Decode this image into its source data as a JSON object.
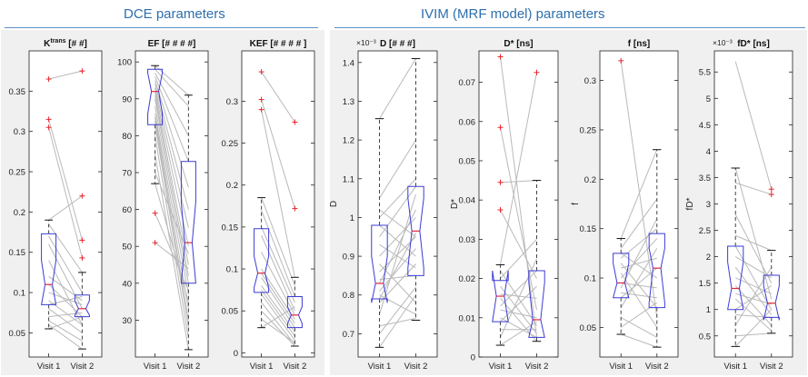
{
  "header": {
    "dce_title": "DCE parameters",
    "ivim_title": "IVIM (MRF model) parameters"
  },
  "colors": {
    "section_title": "#2e6fad",
    "box": "#3b3bd6",
    "median": "#e0283c",
    "outlier": "#e8262c",
    "whisker": "#444444",
    "pair_line": "#b9b9b9"
  },
  "chart_data": [
    {
      "type": "boxplot",
      "title": "K",
      "title_sup": "trans",
      "title_suffix": " [# #]",
      "ylabel": "",
      "exponent": "",
      "categories": [
        "Visit 1",
        "Visit 2"
      ],
      "ylim": [
        0.02,
        0.4
      ],
      "yticks": [
        0.05,
        0.1,
        0.15,
        0.2,
        0.25,
        0.3,
        0.35
      ],
      "ytick_labels": [
        "0.05",
        "0.1",
        "0.15",
        "0.2",
        "0.25",
        "0.3",
        "0.35"
      ],
      "boxes": [
        {
          "whisker_low": 0.055,
          "q1": 0.085,
          "notch_low": 0.085,
          "median": 0.11,
          "notch_high": 0.14,
          "q3": 0.173,
          "whisker_high": 0.19,
          "outliers": [
            0.305,
            0.315,
            0.365
          ]
        },
        {
          "whisker_low": 0.03,
          "q1": 0.07,
          "notch_low": 0.072,
          "median": 0.08,
          "notch_high": 0.09,
          "q3": 0.097,
          "whisker_high": 0.125,
          "outliers": [
            0.143,
            0.165,
            0.22,
            0.375
          ]
        }
      ],
      "pairs": [
        [
          0.365,
          0.375
        ],
        [
          0.315,
          0.165
        ],
        [
          0.305,
          0.143
        ],
        [
          0.19,
          0.22
        ],
        [
          0.185,
          0.125
        ],
        [
          0.17,
          0.1
        ],
        [
          0.16,
          0.08
        ],
        [
          0.14,
          0.06
        ],
        [
          0.12,
          0.09
        ],
        [
          0.11,
          0.07
        ],
        [
          0.1,
          0.085
        ],
        [
          0.09,
          0.06
        ],
        [
          0.085,
          0.095
        ],
        [
          0.08,
          0.05
        ],
        [
          0.07,
          0.075
        ],
        [
          0.065,
          0.04
        ],
        [
          0.06,
          0.03
        ],
        [
          0.055,
          0.07
        ]
      ]
    },
    {
      "type": "boxplot",
      "title": "EF [# # # #]",
      "ylabel": "",
      "exponent": "",
      "categories": [
        "Visit 1",
        "Visit 2"
      ],
      "ylim": [
        20,
        103
      ],
      "yticks": [
        30,
        40,
        50,
        60,
        70,
        80,
        90,
        100
      ],
      "ytick_labels": [
        "30",
        "40",
        "50",
        "60",
        "70",
        "80",
        "90",
        "100"
      ],
      "boxes": [
        {
          "whisker_low": 67,
          "q1": 83,
          "notch_low": 86,
          "median": 92,
          "notch_high": 97,
          "q3": 98,
          "whisker_high": 99,
          "outliers": [
            51,
            59
          ]
        },
        {
          "whisker_low": 22,
          "q1": 40,
          "notch_low": 40,
          "median": 51,
          "notch_high": 62,
          "q3": 73,
          "whisker_high": 91,
          "outliers": []
        }
      ],
      "pairs": [
        [
          99,
          91
        ],
        [
          98,
          88
        ],
        [
          97,
          80
        ],
        [
          96,
          73
        ],
        [
          95,
          66
        ],
        [
          94,
          60
        ],
        [
          93,
          55
        ],
        [
          92,
          50
        ],
        [
          91,
          45
        ],
        [
          90,
          42
        ],
        [
          88,
          40
        ],
        [
          86,
          37
        ],
        [
          85,
          33
        ],
        [
          84,
          30
        ],
        [
          83,
          28
        ],
        [
          80,
          25
        ],
        [
          75,
          22
        ],
        [
          70,
          48
        ],
        [
          67,
          35
        ],
        [
          59,
          38
        ],
        [
          51,
          44
        ]
      ]
    },
    {
      "type": "boxplot",
      "title": "KEF [# # # # ]",
      "ylabel": "",
      "exponent": "",
      "categories": [
        "Visit 1",
        "Visit 2"
      ],
      "ylim": [
        -0.005,
        0.36
      ],
      "yticks": [
        0,
        0.05,
        0.1,
        0.15,
        0.2,
        0.25,
        0.3
      ],
      "ytick_labels": [
        "0",
        "0.05",
        "0.1",
        "0.15",
        "0.2",
        "0.25",
        "0.3"
      ],
      "boxes": [
        {
          "whisker_low": 0.03,
          "q1": 0.072,
          "notch_low": 0.078,
          "median": 0.095,
          "notch_high": 0.115,
          "q3": 0.148,
          "whisker_high": 0.185,
          "outliers": [
            0.29,
            0.302,
            0.335
          ]
        },
        {
          "whisker_low": 0.008,
          "q1": 0.03,
          "notch_low": 0.035,
          "median": 0.045,
          "notch_high": 0.055,
          "q3": 0.067,
          "whisker_high": 0.09,
          "outliers": [
            0.172,
            0.275
          ]
        }
      ],
      "pairs": [
        [
          0.335,
          0.275
        ],
        [
          0.302,
          0.172
        ],
        [
          0.29,
          0.09
        ],
        [
          0.185,
          0.08
        ],
        [
          0.17,
          0.067
        ],
        [
          0.15,
          0.06
        ],
        [
          0.14,
          0.05
        ],
        [
          0.12,
          0.045
        ],
        [
          0.1,
          0.04
        ],
        [
          0.095,
          0.035
        ],
        [
          0.09,
          0.03
        ],
        [
          0.08,
          0.025
        ],
        [
          0.075,
          0.02
        ],
        [
          0.07,
          0.015
        ],
        [
          0.06,
          0.01
        ],
        [
          0.05,
          0.008
        ],
        [
          0.04,
          0.012
        ],
        [
          0.03,
          0.055
        ]
      ]
    },
    {
      "type": "boxplot",
      "title": "D [# # #]",
      "ylabel": "D",
      "exponent": "×10⁻³",
      "categories": [
        "Visit 1",
        "Visit 2"
      ],
      "ylim": [
        0.64,
        1.43
      ],
      "yticks": [
        0.7,
        0.8,
        0.9,
        1.0,
        1.1,
        1.2,
        1.3,
        1.4
      ],
      "ytick_labels": [
        "0.7",
        "0.8",
        "0.9",
        "1",
        "1.1",
        "1.2",
        "1.3",
        "1.4"
      ],
      "boxes": [
        {
          "whisker_low": 0.665,
          "q1": 0.79,
          "notch_low": 0.78,
          "median": 0.83,
          "notch_high": 0.9,
          "q3": 0.98,
          "whisker_high": 1.255,
          "outliers": []
        },
        {
          "whisker_low": 0.735,
          "q1": 0.85,
          "notch_low": 0.87,
          "median": 0.965,
          "notch_high": 1.05,
          "q3": 1.08,
          "whisker_high": 1.41,
          "outliers": []
        }
      ],
      "pairs": [
        [
          1.255,
          1.41
        ],
        [
          1.05,
          1.2
        ],
        [
          1.02,
          0.95
        ],
        [
          1.0,
          1.1
        ],
        [
          0.98,
          0.9
        ],
        [
          0.95,
          1.08
        ],
        [
          0.93,
          0.87
        ],
        [
          0.9,
          1.0
        ],
        [
          0.88,
          0.78
        ],
        [
          0.86,
          0.95
        ],
        [
          0.84,
          0.85
        ],
        [
          0.83,
          1.02
        ],
        [
          0.81,
          0.92
        ],
        [
          0.8,
          0.75
        ],
        [
          0.79,
          0.96
        ],
        [
          0.78,
          0.88
        ],
        [
          0.75,
          1.06
        ],
        [
          0.72,
          0.74
        ],
        [
          0.7,
          0.82
        ],
        [
          0.665,
          0.8
        ]
      ]
    },
    {
      "type": "boxplot",
      "title": "D* [ns]",
      "ylabel": "D*",
      "exponent": "",
      "categories": [
        "Visit 1",
        "Visit 2"
      ],
      "ylim": [
        0,
        0.078
      ],
      "yticks": [
        0,
        0.01,
        0.02,
        0.03,
        0.04,
        0.05,
        0.06,
        0.07
      ],
      "ytick_labels": [
        "0",
        "0.01",
        "0.02",
        "0.03",
        "0.04",
        "0.05",
        "0.06",
        "0.07"
      ],
      "boxes": [
        {
          "whisker_low": 0.003,
          "q1": 0.009,
          "notch_low": 0.009,
          "median": 0.0155,
          "notch_high": 0.022,
          "q3": 0.0195,
          "whisker_high": 0.0235,
          "outliers": [
            0.0375,
            0.0445,
            0.0585,
            0.0765
          ]
        },
        {
          "whisker_low": 0.004,
          "q1": 0.005,
          "notch_low": 0.005,
          "median": 0.0095,
          "notch_high": 0.019,
          "q3": 0.022,
          "whisker_high": 0.045,
          "outliers": [
            0.0725
          ]
        }
      ],
      "pairs": [
        [
          0.0765,
          0.005
        ],
        [
          0.0585,
          0.012
        ],
        [
          0.0445,
          0.045
        ],
        [
          0.0375,
          0.02
        ],
        [
          0.0235,
          0.0725
        ],
        [
          0.022,
          0.008
        ],
        [
          0.02,
          0.03
        ],
        [
          0.018,
          0.006
        ],
        [
          0.016,
          0.015
        ],
        [
          0.015,
          0.004
        ],
        [
          0.013,
          0.022
        ],
        [
          0.012,
          0.01
        ],
        [
          0.01,
          0.005
        ],
        [
          0.009,
          0.018
        ],
        [
          0.007,
          0.007
        ],
        [
          0.005,
          0.025
        ],
        [
          0.003,
          0.009
        ]
      ]
    },
    {
      "type": "boxplot",
      "title": "f [ns]",
      "ylabel": "f",
      "exponent": "",
      "categories": [
        "Visit 1",
        "Visit 2"
      ],
      "ylim": [
        0.02,
        0.33
      ],
      "yticks": [
        0.05,
        0.1,
        0.15,
        0.2,
        0.25,
        0.3
      ],
      "ytick_labels": [
        "0.05",
        "0.1",
        "0.15",
        "0.2",
        "0.25",
        "0.3"
      ],
      "boxes": [
        {
          "whisker_low": 0.043,
          "q1": 0.08,
          "notch_low": 0.08,
          "median": 0.095,
          "notch_high": 0.115,
          "q3": 0.125,
          "whisker_high": 0.14,
          "outliers": [
            0.32
          ]
        },
        {
          "whisker_low": 0.03,
          "q1": 0.07,
          "notch_low": 0.075,
          "median": 0.11,
          "notch_high": 0.13,
          "q3": 0.145,
          "whisker_high": 0.23,
          "outliers": []
        }
      ],
      "pairs": [
        [
          0.32,
          0.06
        ],
        [
          0.14,
          0.23
        ],
        [
          0.13,
          0.18
        ],
        [
          0.125,
          0.1
        ],
        [
          0.12,
          0.15
        ],
        [
          0.115,
          0.07
        ],
        [
          0.11,
          0.12
        ],
        [
          0.105,
          0.05
        ],
        [
          0.1,
          0.14
        ],
        [
          0.095,
          0.09
        ],
        [
          0.09,
          0.16
        ],
        [
          0.085,
          0.08
        ],
        [
          0.08,
          0.11
        ],
        [
          0.07,
          0.13
        ],
        [
          0.06,
          0.04
        ],
        [
          0.05,
          0.075
        ],
        [
          0.043,
          0.03
        ]
      ]
    },
    {
      "type": "boxplot",
      "title": "fD* [ns]",
      "ylabel": "fD*",
      "exponent": "×10⁻³",
      "categories": [
        "Visit 1",
        "Visit 2"
      ],
      "ylim": [
        0.1,
        5.9
      ],
      "yticks": [
        0.5,
        1,
        1.5,
        2,
        2.5,
        3,
        3.5,
        4,
        4.5,
        5,
        5.5
      ],
      "ytick_labels": [
        "0.5",
        "1",
        "1.5",
        "2",
        "2.5",
        "3",
        "3.5",
        "4",
        "4.5",
        "5",
        "5.5"
      ],
      "boxes": [
        {
          "whisker_low": 0.3,
          "q1": 1.0,
          "notch_low": 1.0,
          "median": 1.4,
          "notch_high": 1.9,
          "q3": 2.2,
          "whisker_high": 3.68,
          "outliers": []
        },
        {
          "whisker_low": 0.55,
          "q1": 0.85,
          "notch_low": 0.8,
          "median": 1.12,
          "notch_high": 1.45,
          "q3": 1.65,
          "whisker_high": 2.12,
          "outliers": [
            3.18,
            3.28
          ]
        }
      ],
      "pairs": [
        [
          5.7,
          3.28
        ],
        [
          3.68,
          1.2
        ],
        [
          3.4,
          3.18
        ],
        [
          2.8,
          1.5
        ],
        [
          2.4,
          2.12
        ],
        [
          2.2,
          1.0
        ],
        [
          2.0,
          1.6
        ],
        [
          1.8,
          0.9
        ],
        [
          1.6,
          1.3
        ],
        [
          1.45,
          0.7
        ],
        [
          1.3,
          1.1
        ],
        [
          1.2,
          0.6
        ],
        [
          1.0,
          1.45
        ],
        [
          0.9,
          0.85
        ],
        [
          0.7,
          1.8
        ],
        [
          0.5,
          0.55
        ],
        [
          0.3,
          1.0
        ]
      ]
    }
  ]
}
